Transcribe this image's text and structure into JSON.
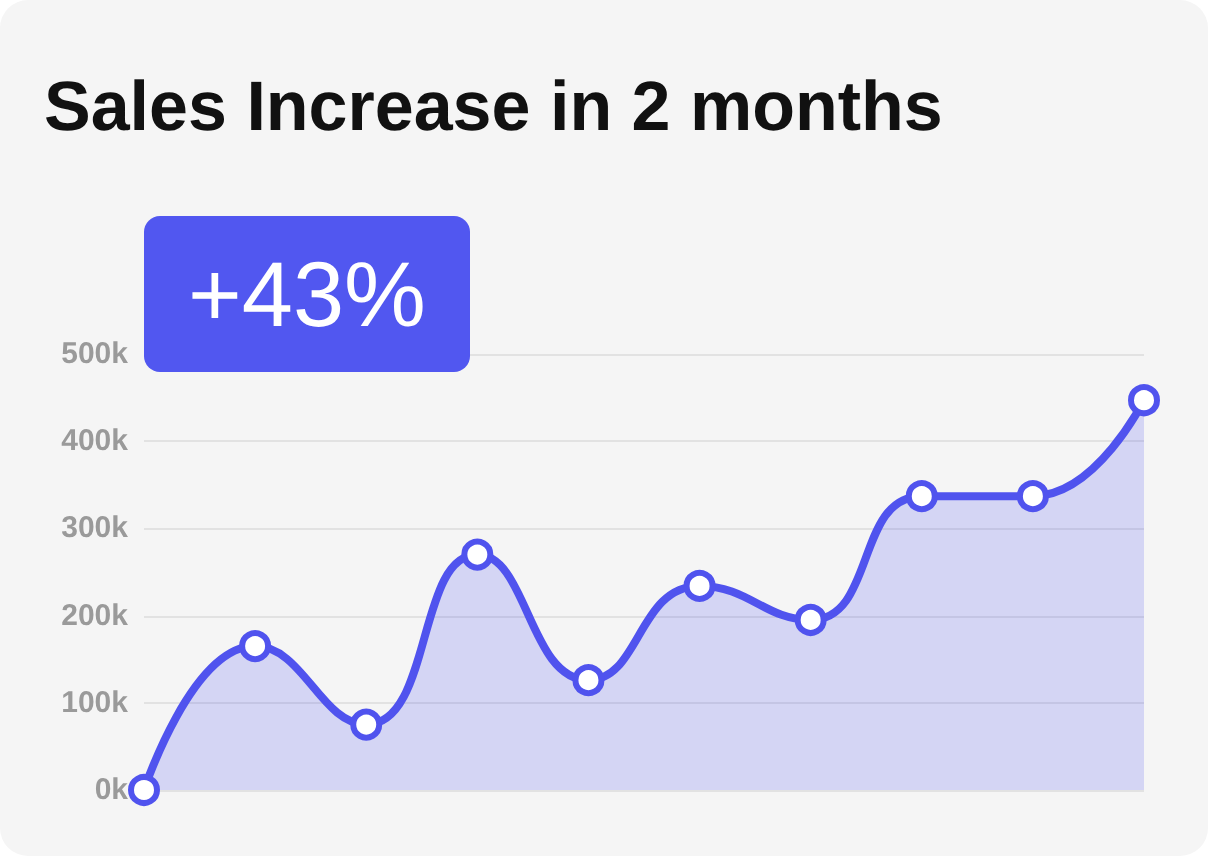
{
  "chart_data": {
    "type": "area",
    "title": "Sales Increase in 2 months",
    "annotations": [
      "+43%"
    ],
    "categories": [
      null,
      null,
      null,
      null,
      null,
      null,
      null,
      null,
      null,
      null
    ],
    "series": [
      {
        "color": "#5053ee",
        "values": [
          0,
          165,
          75,
          270,
          126,
          234,
          195,
          337,
          337,
          447
        ]
      }
    ],
    "ylim": [
      0,
      500
    ],
    "yticks": [
      {
        "value": 0,
        "label": "0k"
      },
      {
        "value": 100,
        "label": "100k"
      },
      {
        "value": 200,
        "label": "200k"
      },
      {
        "value": 300,
        "label": "300k"
      },
      {
        "value": 400,
        "label": "400k"
      },
      {
        "value": 500,
        "label": "500k"
      }
    ],
    "grid": "y",
    "marker": "circle"
  }
}
